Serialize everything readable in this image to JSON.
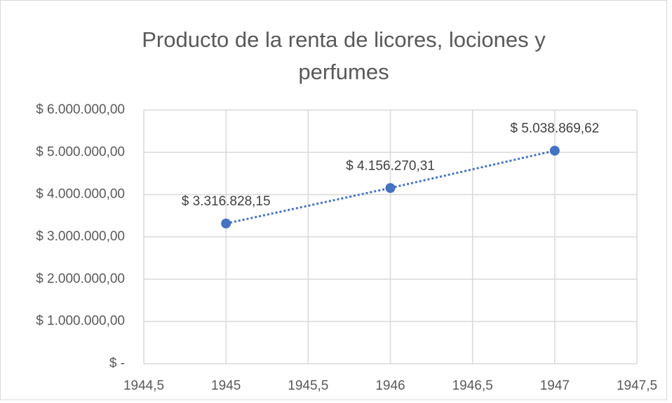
{
  "chart_data": {
    "type": "scatter",
    "title": "Producto de la renta de licores, lociones y perfumes",
    "x": [
      1945,
      1946,
      1947
    ],
    "values": [
      3316828.15,
      4156270.31,
      5038869.62
    ],
    "value_labels": [
      "$ 3.316.828,15",
      "$ 4.156.270,31",
      "$ 5.038.869,62"
    ],
    "color": "#4472c4",
    "line_style": "dotted",
    "xlim": [
      1944.5,
      1947.5
    ],
    "xticks": [
      {
        "value": 1944.5,
        "label": "1944,5"
      },
      1945,
      {
        "value": 1945.5,
        "label": "1945,5"
      },
      1946,
      {
        "value": 1946.5,
        "label": "1946,5"
      },
      1947,
      {
        "value": 1947.5,
        "label": "1947,5"
      }
    ],
    "ylim": [
      0,
      6000000
    ],
    "yticks": [
      {
        "value": 0,
        "label": "$ -"
      },
      {
        "value": 1000000,
        "label": "$ 1.000.000,00"
      },
      {
        "value": 2000000,
        "label": "$ 2.000.000,00"
      },
      {
        "value": 3000000,
        "label": "$ 3.000.000,00"
      },
      {
        "value": 4000000,
        "label": "$ 4.000.000,00"
      },
      {
        "value": 5000000,
        "label": "$ 5.000.000,00"
      },
      {
        "value": 6000000,
        "label": "$ 6.000.000,00"
      }
    ],
    "grid": true
  }
}
